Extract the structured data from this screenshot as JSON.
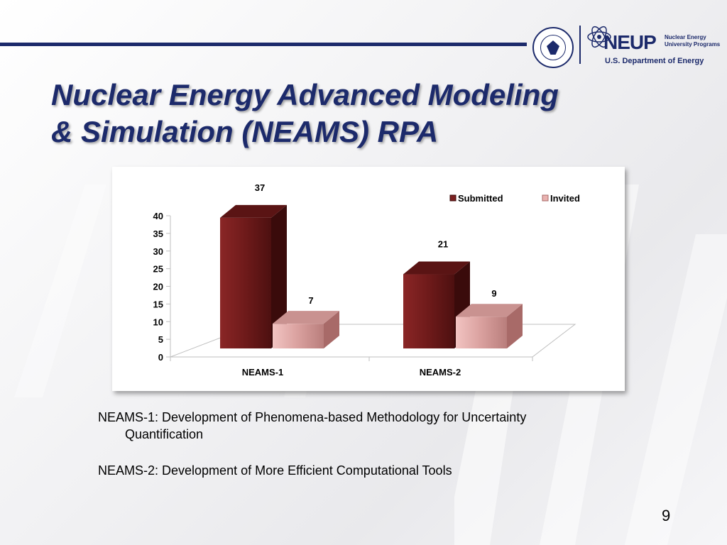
{
  "slide": {
    "title_line1": "Nuclear Energy Advanced Modeling",
    "title_line2": "& Simulation (NEAMS) RPA",
    "page_number": "9"
  },
  "logos": {
    "neup": "NEUP",
    "neup_sub_line1": "Nuclear Energy",
    "neup_sub_line2": "University Programs",
    "doe": "U.S. Department of Energy"
  },
  "descriptions": {
    "neams1_line1": "NEAMS-1: Development of Phenomena-based Methodology for Uncertainty",
    "neams1_line2": "Quantification",
    "neams2": "NEAMS-2: Development of More Efficient Computational Tools"
  },
  "colors": {
    "brand_navy": "#1c2a6b",
    "submitted": "#7a1f1f",
    "invited": "#e9b2b0"
  },
  "chart_data": {
    "type": "bar",
    "style": "3d-clustered",
    "categories": [
      "NEAMS-1",
      "NEAMS-2"
    ],
    "series": [
      {
        "name": "Submitted",
        "values": [
          37,
          21
        ]
      },
      {
        "name": "Invited",
        "values": [
          7,
          9
        ]
      }
    ],
    "ylim": [
      0,
      40
    ],
    "yticks": [
      0,
      5,
      10,
      15,
      20,
      25,
      30,
      35,
      40
    ],
    "data_labels": true,
    "legend": "top-right",
    "grid": false
  }
}
